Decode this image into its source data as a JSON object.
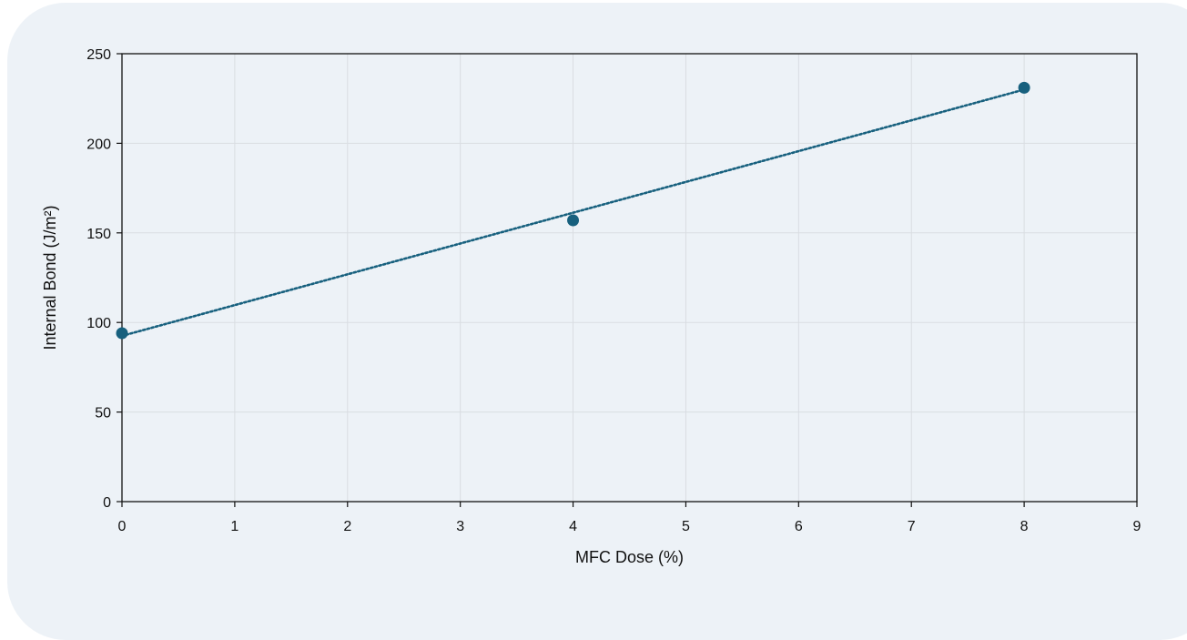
{
  "chart_data": {
    "type": "scatter",
    "xlabel": "MFC Dose (%)",
    "ylabel": "Internal Bond  (J/m²)",
    "xlim": [
      0,
      9
    ],
    "ylim": [
      0,
      250
    ],
    "x_ticks": [
      "0",
      "1",
      "2",
      "3",
      "4",
      "5",
      "6",
      "7",
      "8",
      "9"
    ],
    "y_ticks": [
      "0",
      "50",
      "100",
      "150",
      "200",
      "250"
    ],
    "grid": true,
    "legend": "none",
    "series": [
      {
        "points": [
          {
            "x": 0,
            "y": 94
          },
          {
            "x": 4,
            "y": 157
          },
          {
            "x": 8,
            "y": 231
          }
        ],
        "color": "#17607e"
      }
    ],
    "trendline": {
      "type": "linear",
      "style": "dotted",
      "color": "#17607e",
      "from": {
        "x": 0,
        "y": 92.5
      },
      "to": {
        "x": 8,
        "y": 230
      }
    },
    "colors": {
      "background": "#edf2f7",
      "grid": "#d9dde2",
      "axis": "#111111"
    }
  }
}
